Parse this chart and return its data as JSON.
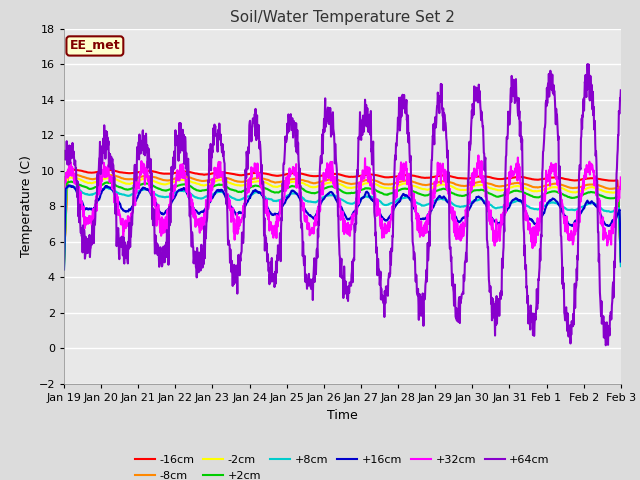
{
  "title": "Soil/Water Temperature Set 2",
  "xlabel": "Time",
  "ylabel": "Temperature (C)",
  "ylim": [
    -2,
    18
  ],
  "yticks": [
    -2,
    0,
    2,
    4,
    6,
    8,
    10,
    12,
    14,
    16,
    18
  ],
  "fig_bg": "#dcdcdc",
  "plot_bg": "#e8e8e8",
  "grid_color": "white",
  "annotation_text": "EE_met",
  "annotation_bg": "#ffffcc",
  "annotation_border": "#800000",
  "annotation_text_color": "#800000",
  "series": [
    {
      "label": "-16cm",
      "color": "#ff0000",
      "lw": 1.5
    },
    {
      "label": "-8cm",
      "color": "#ff8800",
      "lw": 1.5
    },
    {
      "label": "-2cm",
      "color": "#ffff00",
      "lw": 1.5
    },
    {
      "label": "+2cm",
      "color": "#00cc00",
      "lw": 1.5
    },
    {
      "label": "+8cm",
      "color": "#00cccc",
      "lw": 1.5
    },
    {
      "label": "+16cm",
      "color": "#0000cc",
      "lw": 1.5
    },
    {
      "label": "+32cm",
      "color": "#ff00ff",
      "lw": 1.5
    },
    {
      "label": "+64cm",
      "color": "#8800cc",
      "lw": 1.5
    }
  ],
  "tick_labels": [
    "Jan 19",
    "Jan 20",
    "Jan 21",
    "Jan 22",
    "Jan 23",
    "Jan 24",
    "Jan 25",
    "Jan 26",
    "Jan 27",
    "Jan 28",
    "Jan 29",
    "Jan 30",
    "Jan 31",
    "Feb 1",
    "Feb 2",
    "Feb 3"
  ]
}
